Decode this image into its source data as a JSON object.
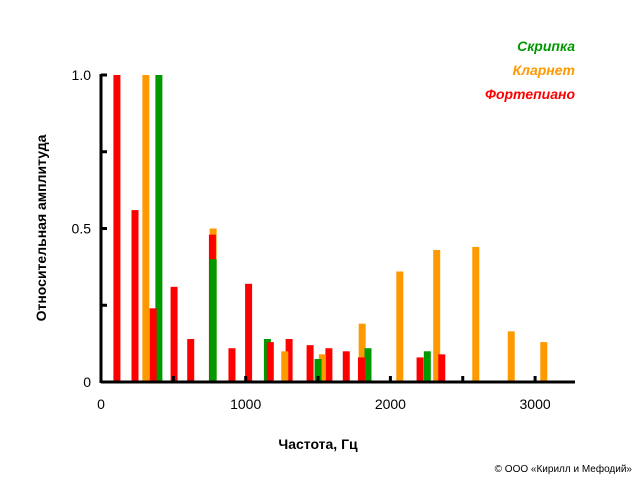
{
  "chart_data": {
    "type": "bar",
    "title": "",
    "xlabel": "Частота, Гц",
    "ylabel": "Относительная  амплитуда",
    "xlim": [
      0,
      3250
    ],
    "ylim": [
      0,
      1.0
    ],
    "x_ticks": [
      0,
      1000,
      2000,
      3000
    ],
    "x_tick_labels": [
      "0",
      "1000",
      "2000",
      "3000"
    ],
    "y_ticks": [
      0,
      0.5,
      1.0
    ],
    "y_tick_labels": [
      "0",
      "0.5",
      "1.0"
    ],
    "grid": false,
    "legend_position": "top-right",
    "series": [
      {
        "name": "Скрипка",
        "color": "#009900",
        "x": [
          400,
          775,
          1150,
          1500,
          1845,
          2255
        ],
        "values": [
          1.0,
          0.4,
          0.14,
          0.075,
          0.11,
          0.1
        ]
      },
      {
        "name": "Кларнет",
        "color": "#ff9900",
        "x": [
          310,
          775,
          1270,
          1530,
          1805,
          2065,
          2320,
          2590,
          2835,
          3060
        ],
        "values": [
          1.0,
          0.5,
          0.1,
          0.09,
          0.19,
          0.36,
          0.43,
          0.44,
          0.165,
          0.13
        ]
      },
      {
        "name": "Фортепиано",
        "color": "#ff0000",
        "x": [
          110,
          235,
          360,
          505,
          620,
          770,
          905,
          1020,
          1170,
          1300,
          1445,
          1575,
          1695,
          1800,
          2205,
          2355
        ],
        "values": [
          1.0,
          0.56,
          0.24,
          0.31,
          0.14,
          0.48,
          0.11,
          0.32,
          0.13,
          0.14,
          0.12,
          0.11,
          0.1,
          0.08,
          0.08,
          0.09
        ]
      }
    ]
  },
  "copyright": "© ООО «Кирилл и Мефодий»"
}
